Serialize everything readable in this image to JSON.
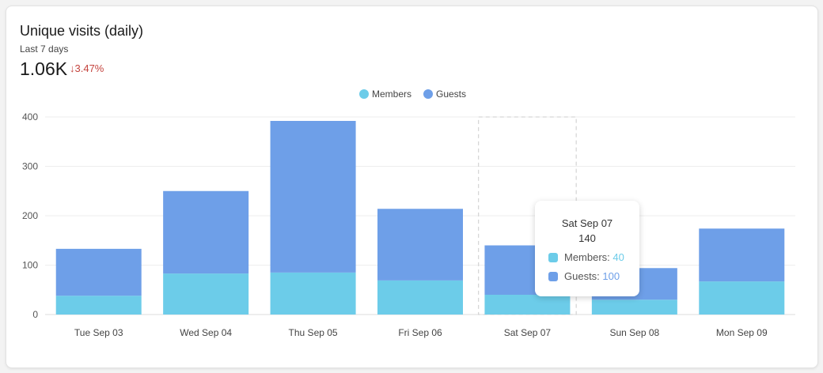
{
  "header": {
    "title": "Unique visits (daily)",
    "subtitle": "Last 7 days",
    "total": "1.06K",
    "delta": "↓3.47%",
    "delta_color": "#c4443e"
  },
  "chart_data": {
    "type": "bar",
    "stacked": true,
    "categories": [
      "Tue Sep 03",
      "Wed Sep 04",
      "Thu Sep 05",
      "Fri Sep 06",
      "Sat Sep 07",
      "Sun Sep 08",
      "Mon Sep 09"
    ],
    "series": [
      {
        "name": "Members",
        "color": "#6ccce9",
        "values": [
          38,
          83,
          85,
          69,
          40,
          30,
          67
        ]
      },
      {
        "name": "Guests",
        "color": "#6e9fe8",
        "values": [
          95,
          167,
          307,
          145,
          100,
          64,
          107
        ]
      }
    ],
    "ylim": [
      0,
      400
    ],
    "yticks": [
      "0",
      "100",
      "200",
      "300",
      "400"
    ],
    "grid": true,
    "legend": "top-center",
    "highlighted": 4
  },
  "tooltip": {
    "title": "Sat Sep 07",
    "total": "140",
    "members_label": "Members:",
    "members_value": "40",
    "guests_label": "Guests:",
    "guests_value": "100"
  }
}
